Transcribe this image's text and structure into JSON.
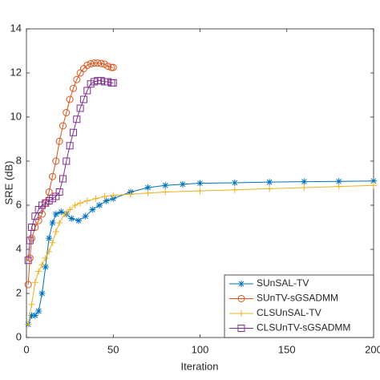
{
  "chart_data": {
    "type": "line",
    "xlabel": "Iteration",
    "ylabel": "SRE (dB)",
    "xlim": [
      0,
      200
    ],
    "xticks": [
      0,
      50,
      100,
      150,
      200
    ],
    "ylim": [
      0,
      14
    ],
    "yticks": [
      0,
      2,
      4,
      6,
      8,
      10,
      12,
      14
    ],
    "legend": "lower right",
    "series": [
      {
        "name": "SUnSAL-TV",
        "color": "#0072BD",
        "marker": "asterisk",
        "x": [
          1,
          3,
          5,
          7,
          9,
          11,
          13,
          15,
          17,
          20,
          23,
          26,
          30,
          34,
          38,
          42,
          46,
          50,
          60,
          70,
          80,
          90,
          100,
          120,
          140,
          160,
          180,
          200
        ],
        "values": [
          0.6,
          1.0,
          1.0,
          1.2,
          2.0,
          3.2,
          4.5,
          5.2,
          5.6,
          5.7,
          5.6,
          5.4,
          5.3,
          5.5,
          5.8,
          6.0,
          6.2,
          6.3,
          6.6,
          6.8,
          6.9,
          6.95,
          7.0,
          7.02,
          7.05,
          7.07,
          7.08,
          7.1
        ]
      },
      {
        "name": "SUnTV-sGSADMM",
        "color": "#D95319",
        "marker": "circle",
        "x": [
          1,
          2,
          3,
          5,
          7,
          9,
          11,
          13,
          15,
          17,
          19,
          21,
          23,
          25,
          27,
          29,
          31,
          33,
          35,
          37,
          39,
          41,
          43,
          45,
          47,
          49,
          50
        ],
        "values": [
          2.4,
          3.6,
          4.5,
          5.0,
          5.3,
          5.6,
          6.1,
          6.6,
          7.3,
          8.0,
          8.9,
          9.6,
          10.2,
          10.8,
          11.3,
          11.7,
          12.0,
          12.2,
          12.35,
          12.42,
          12.45,
          12.45,
          12.43,
          12.4,
          12.3,
          12.25,
          12.25
        ]
      },
      {
        "name": "CLSUnSAL-TV",
        "color": "#EDB120",
        "marker": "plus",
        "x": [
          1,
          3,
          5,
          7,
          9,
          11,
          13,
          15,
          17,
          19,
          22,
          25,
          28,
          31,
          35,
          40,
          45,
          50,
          60,
          70,
          80,
          100,
          120,
          140,
          160,
          180,
          200
        ],
        "values": [
          0.6,
          1.5,
          2.5,
          3.0,
          3.3,
          3.6,
          3.9,
          4.3,
          4.8,
          5.2,
          5.6,
          5.8,
          6.0,
          6.1,
          6.2,
          6.3,
          6.4,
          6.45,
          6.5,
          6.55,
          6.6,
          6.65,
          6.7,
          6.75,
          6.8,
          6.85,
          6.9
        ]
      },
      {
        "name": "CLSUnTV-sGSADMM",
        "color": "#7E2F8E",
        "marker": "square",
        "x": [
          1,
          2,
          3,
          5,
          7,
          9,
          11,
          13,
          15,
          17,
          19,
          21,
          23,
          25,
          27,
          29,
          31,
          33,
          35,
          37,
          39,
          41,
          43,
          45,
          47,
          49,
          50
        ],
        "values": [
          3.5,
          4.4,
          5.0,
          5.5,
          5.8,
          6.0,
          6.1,
          6.2,
          6.3,
          6.4,
          6.6,
          7.2,
          8.0,
          8.7,
          9.3,
          9.9,
          10.4,
          10.8,
          11.2,
          11.5,
          11.6,
          11.65,
          11.65,
          11.6,
          11.6,
          11.55,
          11.55
        ]
      }
    ]
  }
}
